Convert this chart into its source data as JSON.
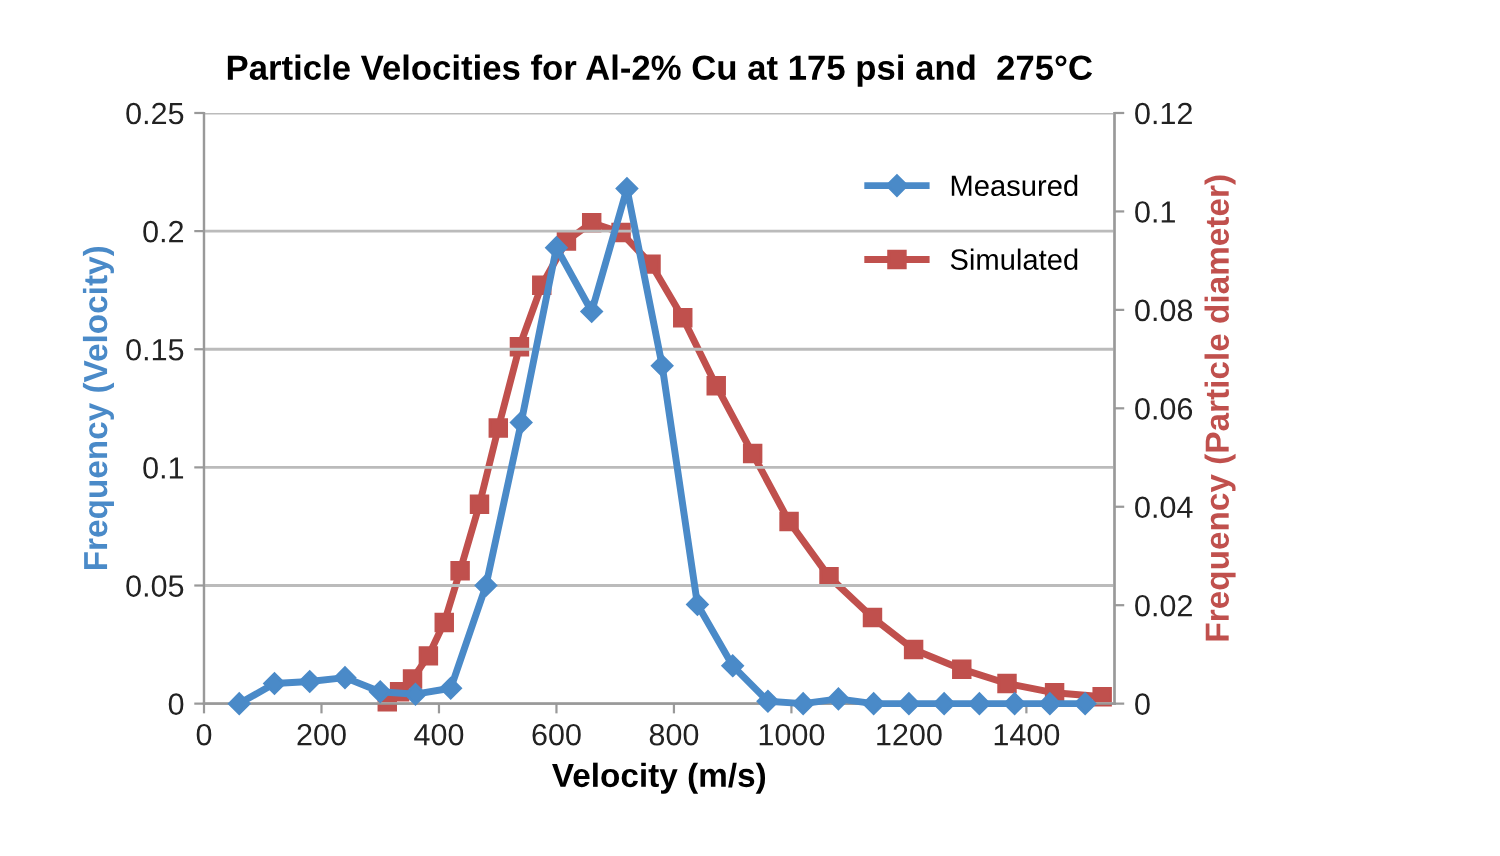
{
  "chart_data": {
    "type": "line",
    "title": "Particle Velocities for Al-2% Cu at 175 psi and  275°C",
    "xlabel": "Velocity (m/s)",
    "ylabel": "Frequency (Velocity)",
    "y2label": "Frequency (Particle diameter)",
    "xlim": [
      0,
      1550
    ],
    "xticks": [
      0,
      200,
      400,
      600,
      800,
      1000,
      1200,
      1400
    ],
    "ylim": [
      0,
      0.25
    ],
    "yticks": [
      0,
      0.05,
      0.1,
      0.15,
      0.2,
      0.25
    ],
    "y2lim": [
      0,
      0.12
    ],
    "y2ticks": [
      0,
      0.02,
      0.04,
      0.06,
      0.08,
      0.1,
      0.12
    ],
    "grid": "y",
    "legend": "top right",
    "series": [
      {
        "name": "Measured",
        "color": "#4a8ac8",
        "marker": "diamond",
        "x": [
          60,
          120,
          180,
          240,
          300,
          360,
          420,
          480,
          540,
          600,
          660,
          720,
          780,
          840,
          900,
          960,
          1020,
          1080,
          1140,
          1200,
          1260,
          1320,
          1380,
          1440,
          1500
        ],
        "values": [
          0,
          0.0085,
          0.0094,
          0.011,
          0.005,
          0.004,
          0.0065,
          0.05,
          0.119,
          0.193,
          0.166,
          0.218,
          0.143,
          0.042,
          0.016,
          0.001,
          0,
          0.002,
          0,
          0,
          0,
          0,
          0,
          0,
          0
        ]
      },
      {
        "name": "Simulated",
        "color": "#c0504d",
        "marker": "square",
        "axis": "y2",
        "x": [
          312,
          333,
          355,
          382,
          409,
          436,
          469,
          501,
          537,
          575,
          617,
          660,
          710,
          761,
          815,
          872,
          934,
          996,
          1064,
          1138,
          1208,
          1290,
          1367,
          1448,
          1529
        ],
        "values": [
          0.0004,
          0.0024,
          0.005,
          0.0097,
          0.0165,
          0.027,
          0.0405,
          0.056,
          0.0725,
          0.085,
          0.094,
          0.0977,
          0.0957,
          0.0893,
          0.0784,
          0.0646,
          0.0508,
          0.037,
          0.0258,
          0.0175,
          0.011,
          0.007,
          0.0041,
          0.0022,
          0.0014
        ]
      }
    ]
  }
}
